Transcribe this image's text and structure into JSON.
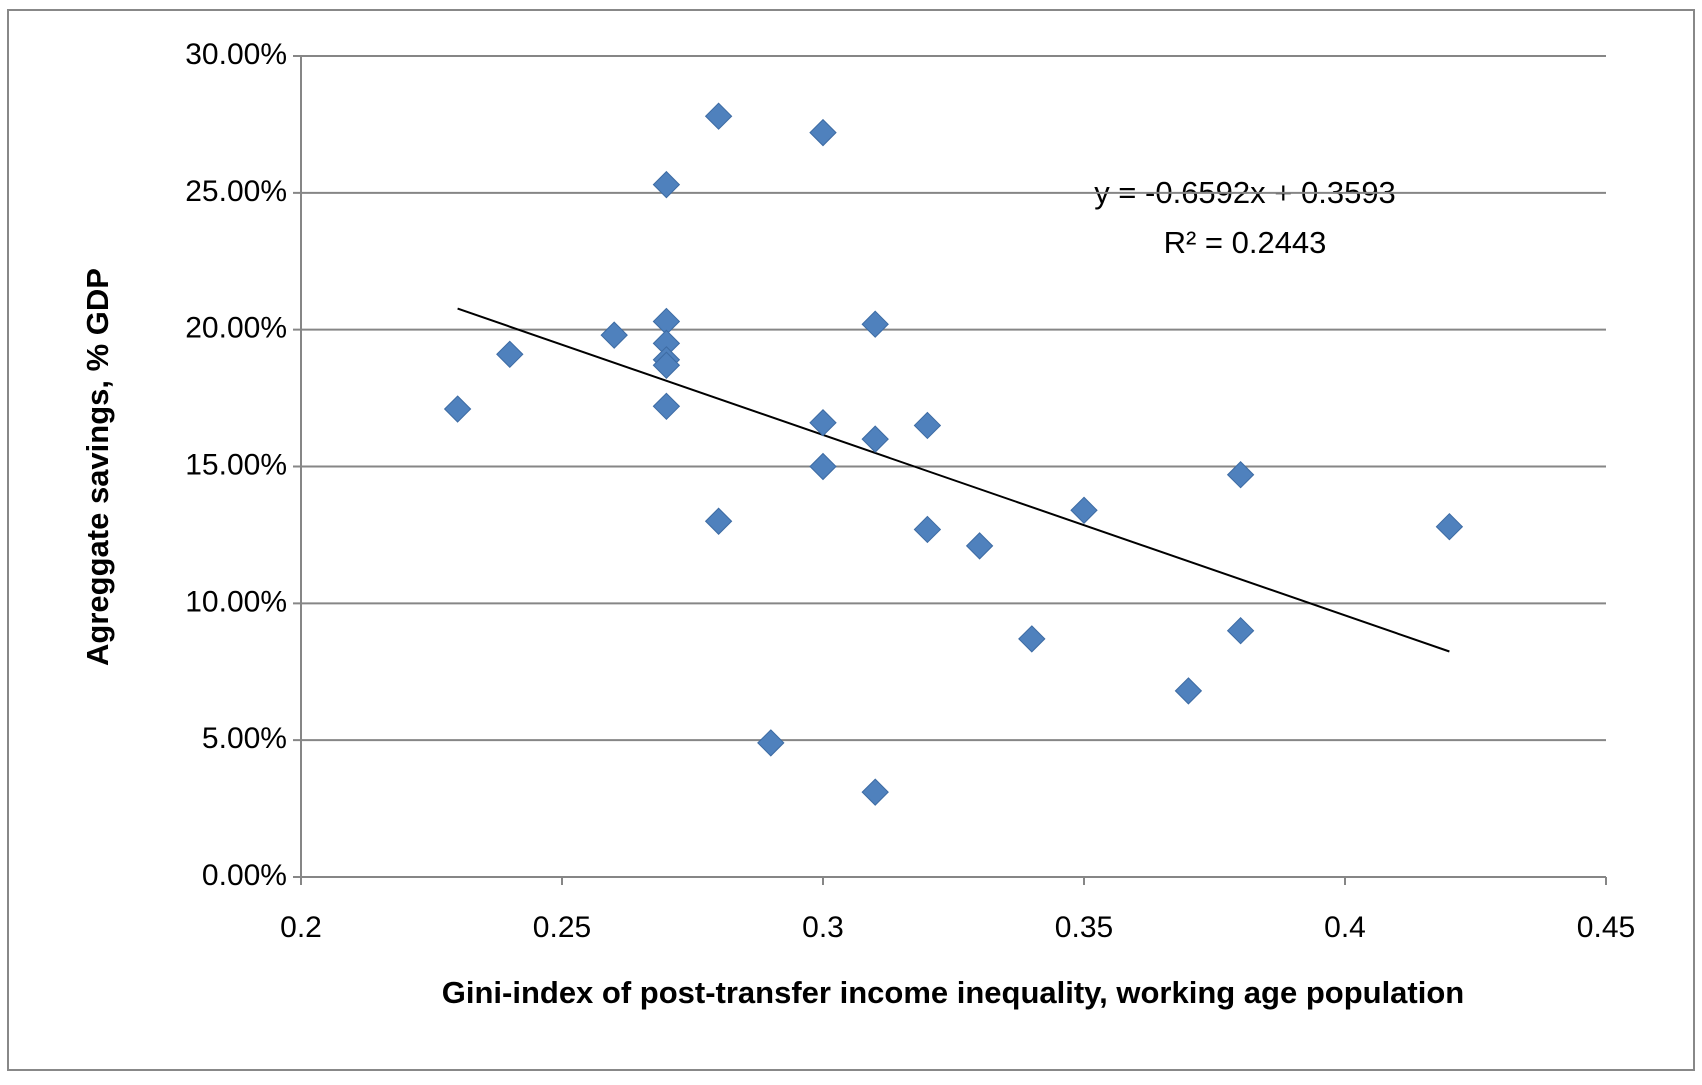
{
  "chart_data": {
    "type": "scatter",
    "x_label": "Gini-index of post-transfer income inequality, working age population",
    "y_label": "Agreggate savings, % GDP",
    "series": [
      {
        "color": "#4f81bd",
        "x": [
          0.23,
          0.24,
          0.26,
          0.27,
          0.27,
          0.27,
          0.27,
          0.27,
          0.27,
          0.28,
          0.28,
          0.29,
          0.3,
          0.3,
          0.3,
          0.31,
          0.31,
          0.31,
          0.32,
          0.32,
          0.33,
          0.34,
          0.35,
          0.37,
          0.38,
          0.38,
          0.42
        ],
        "values": [
          17.1,
          19.1,
          19.8,
          25.3,
          20.3,
          19.5,
          18.9,
          18.7,
          17.2,
          27.8,
          13.0,
          4.9,
          27.2,
          16.6,
          15.0,
          20.2,
          16.0,
          3.1,
          16.5,
          12.7,
          12.1,
          8.7,
          13.4,
          6.8,
          14.7,
          9.0,
          12.8
        ]
      }
    ],
    "trendline": {
      "color": "#000000",
      "x": [
        0.23,
        0.42
      ],
      "values": [
        20.77,
        8.24
      ],
      "equation": "y = -0.6592x + 0.3593",
      "r_squared": "R² = 0.2443"
    },
    "xlim": [
      0.2,
      0.45
    ],
    "xticks": [
      0.2,
      0.25,
      0.3,
      0.35,
      0.4,
      0.45
    ],
    "ylim": [
      0,
      30
    ],
    "yticks": [
      {
        "value": 0,
        "label": "0.00%"
      },
      {
        "value": 5,
        "label": "5.00%"
      },
      {
        "value": 10,
        "label": "10.00%"
      },
      {
        "value": 15,
        "label": "15.00%"
      },
      {
        "value": 20,
        "label": "20.00%"
      },
      {
        "value": 25,
        "label": "25.00%"
      },
      {
        "value": 30,
        "label": "30.00%"
      }
    ],
    "grid": true
  }
}
